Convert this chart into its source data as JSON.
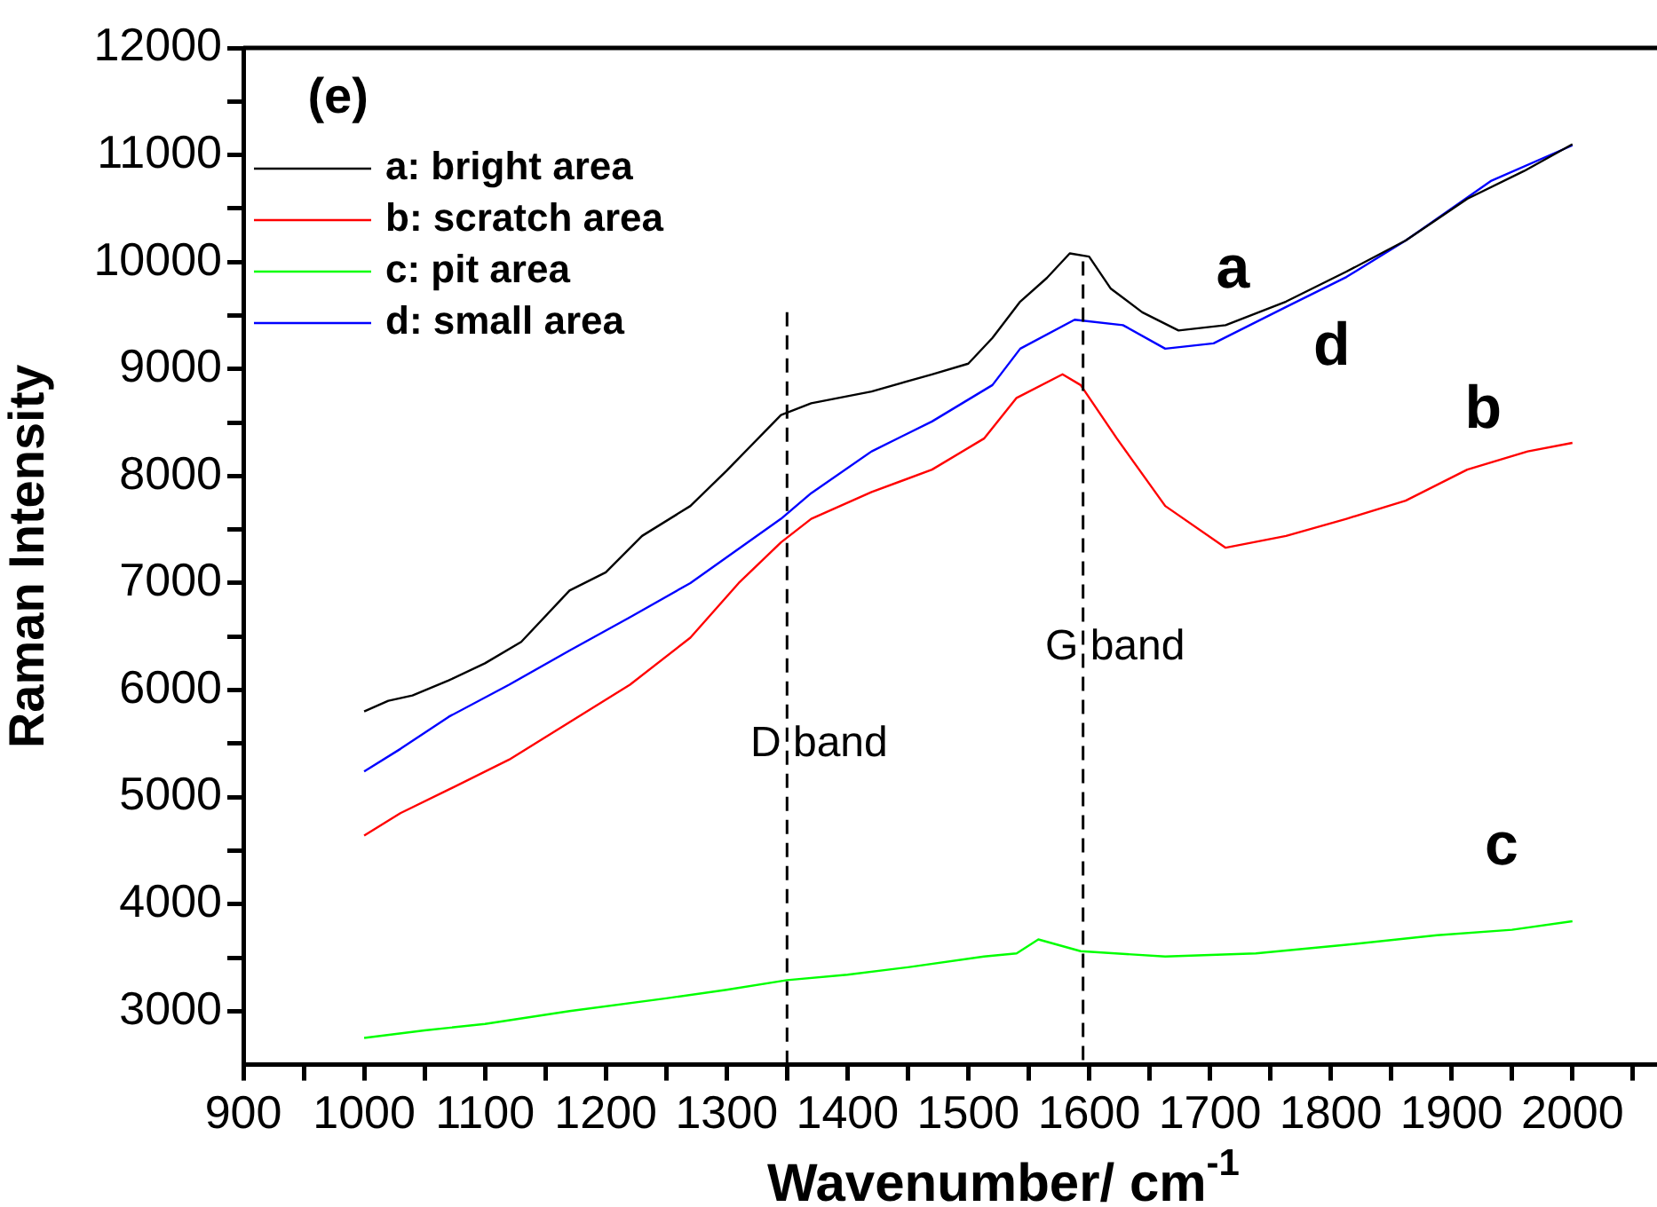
{
  "chart_data": {
    "type": "line",
    "xlabel": "Wavenumber/ cm$^{-1}$",
    "ylabel": "Raman Intensity",
    "xlim": [
      900,
      2070
    ],
    "ylim": [
      2500,
      12000
    ],
    "xticks": [
      900,
      {
        "value": 950,
        "label": null
      },
      1000,
      {
        "value": 1050,
        "label": null
      },
      1100,
      {
        "value": 1150,
        "label": null
      },
      1200,
      {
        "value": 1250,
        "label": null
      },
      1300,
      {
        "value": 1350,
        "label": null
      },
      1400,
      {
        "value": 1450,
        "label": null
      },
      1500,
      {
        "value": 1550,
        "label": null
      },
      1600,
      {
        "value": 1650,
        "label": null
      },
      1700,
      {
        "value": 1750,
        "label": null
      },
      1800,
      {
        "value": 1850,
        "label": null
      },
      1900,
      {
        "value": 1950,
        "label": null
      },
      2000,
      {
        "value": 2050,
        "label": null
      }
    ],
    "yticks": [
      3000,
      {
        "value": 3500,
        "label": null
      },
      4000,
      {
        "value": 4500,
        "label": null
      },
      5000,
      {
        "value": 5500,
        "label": null
      },
      6000,
      {
        "value": 6500,
        "label": null
      },
      7000,
      {
        "value": 7500,
        "label": null
      },
      8000,
      {
        "value": 8500,
        "label": null
      },
      9000,
      {
        "value": 9500,
        "label": null
      },
      10000,
      {
        "value": 10500,
        "label": null
      },
      11000,
      {
        "value": 11500,
        "label": null
      },
      12000
    ],
    "grid": false,
    "legend": "top left",
    "marker": "none",
    "series": [
      {
        "name": "a: bright area",
        "color": "#000000",
        "x": [
          1000,
          1020,
          1040,
          1070,
          1100,
          1130,
          1170,
          1200,
          1230,
          1270,
          1300,
          1345,
          1370,
          1420,
          1470,
          1500,
          1520,
          1543,
          1565,
          1584,
          1600,
          1618,
          1644,
          1674,
          1713,
          1763,
          1813,
          1862,
          1913,
          1960,
          2000
        ],
        "values": [
          5800,
          5900,
          5950,
          6090,
          6250,
          6450,
          6930,
          7100,
          7440,
          7720,
          8050,
          8570,
          8680,
          8790,
          8950,
          9050,
          9290,
          9630,
          9850,
          10080,
          10050,
          9750,
          9530,
          9360,
          9410,
          9630,
          9910,
          10200,
          10590,
          10850,
          11100
        ]
      },
      {
        "name": "b: scratch area",
        "color": "#ff0000",
        "x": [
          1000,
          1030,
          1070,
          1120,
          1170,
          1220,
          1270,
          1310,
          1345,
          1370,
          1420,
          1470,
          1513,
          1540,
          1578,
          1593,
          1623,
          1663,
          1713,
          1763,
          1813,
          1862,
          1913,
          1963,
          2000
        ],
        "values": [
          4640,
          4850,
          5070,
          5350,
          5700,
          6050,
          6490,
          7000,
          7380,
          7600,
          7850,
          8060,
          8350,
          8730,
          8950,
          8850,
          8350,
          7720,
          7330,
          7440,
          7600,
          7770,
          8060,
          8230,
          8310
        ]
      },
      {
        "name": "c: pit area",
        "color": "#00ff00",
        "x": [
          1000,
          1050,
          1100,
          1170,
          1250,
          1300,
          1350,
          1400,
          1450,
          1513,
          1540,
          1558,
          1593,
          1663,
          1738,
          1813,
          1888,
          1950,
          2000
        ],
        "values": [
          2750,
          2820,
          2880,
          3000,
          3120,
          3200,
          3290,
          3340,
          3410,
          3510,
          3540,
          3670,
          3560,
          3510,
          3540,
          3620,
          3710,
          3760,
          3840
        ]
      },
      {
        "name": "d: small area",
        "color": "#0000ff",
        "x": [
          1000,
          1030,
          1070,
          1120,
          1170,
          1220,
          1270,
          1345,
          1370,
          1420,
          1470,
          1520,
          1543,
          1588,
          1628,
          1663,
          1703,
          1763,
          1813,
          1862,
          1933,
          2000
        ],
        "values": [
          5240,
          5450,
          5750,
          6050,
          6370,
          6680,
          7000,
          7600,
          7840,
          8230,
          8510,
          8850,
          9190,
          9460,
          9410,
          9190,
          9240,
          9580,
          9860,
          10200,
          10760,
          11090
        ]
      }
    ],
    "ref_lines": [
      {
        "axis": "x",
        "value": 1350,
        "label": "D band",
        "line_style": "dashed",
        "color": "#000000"
      },
      {
        "axis": "x",
        "value": 1595,
        "label": "G band",
        "line_style": "dashed",
        "color": "#000000"
      }
    ],
    "annotations": [
      "(e)",
      "a",
      "d",
      "b",
      "c"
    ]
  }
}
